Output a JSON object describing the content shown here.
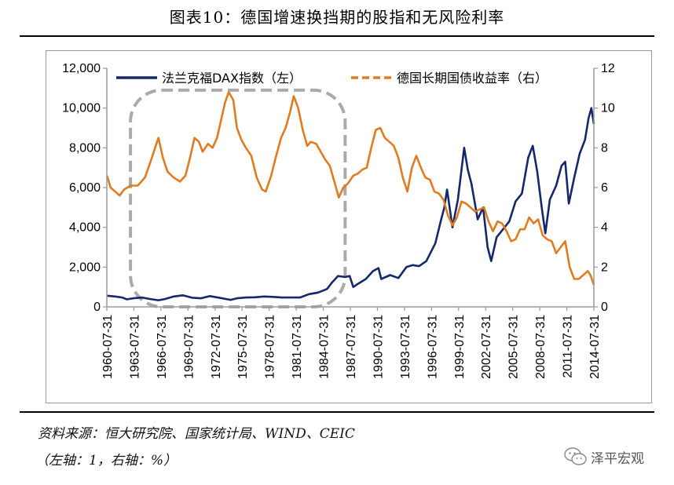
{
  "title": "图表10：德国增速换挡期的股指和无风险利率",
  "source": "资料来源：恒大研究院、国家统计局、WIND、CEIC",
  "note": "（左轴：1，右轴：%）",
  "brand": "泽平宏观",
  "brand_icon": "wechat-icon",
  "colors": {
    "dax": "#14286b",
    "bond": "#e07b22",
    "highlight": "#aaaaaa"
  },
  "chart_data": {
    "type": "line",
    "title": "图表10：德国增速换挡期的股指和无风险利率",
    "x_tick_labels": [
      "1960-07-31",
      "1963-07-31",
      "1966-07-31",
      "1969-07-31",
      "1972-07-31",
      "1975-07-31",
      "1978-07-31",
      "1981-07-31",
      "1984-07-31",
      "1987-07-31",
      "1990-07-31",
      "1993-07-31",
      "1996-07-31",
      "1999-07-31",
      "2002-07-31",
      "2005-07-31",
      "2008-07-31",
      "2011-07-31",
      "2014-07-31"
    ],
    "xlim": [
      1960.58,
      2014.58
    ],
    "left_axis": {
      "ylim": [
        0,
        12000
      ],
      "ticks": [
        "0",
        "2,000",
        "4,000",
        "6,000",
        "8,000",
        "10,000",
        "12,000"
      ]
    },
    "right_axis": {
      "ylim": [
        0,
        12
      ],
      "ticks": [
        "0",
        "2",
        "4",
        "6",
        "8",
        "10",
        "12"
      ]
    },
    "legend": [
      "法兰克福DAX指数（左）",
      "德国长期国债收益率（右）"
    ],
    "legend_position": "top",
    "highlight": {
      "shape": "rounded-rect",
      "style": "dashed",
      "x_range": [
        1963.2,
        1987.0
      ],
      "y_range_left": [
        0,
        10900
      ]
    },
    "series": [
      {
        "name": "法兰克福DAX指数（左）",
        "axis": "left",
        "style": "solid",
        "points": [
          [
            1960.6,
            560
          ],
          [
            1961.5,
            520
          ],
          [
            1962.3,
            470
          ],
          [
            1962.8,
            380
          ],
          [
            1963.5,
            430
          ],
          [
            1964.5,
            470
          ],
          [
            1965.3,
            400
          ],
          [
            1966.3,
            330
          ],
          [
            1967.0,
            390
          ],
          [
            1968.0,
            520
          ],
          [
            1969.0,
            580
          ],
          [
            1970.0,
            460
          ],
          [
            1971.0,
            430
          ],
          [
            1972.0,
            540
          ],
          [
            1973.0,
            460
          ],
          [
            1974.3,
            350
          ],
          [
            1975.0,
            430
          ],
          [
            1976.0,
            470
          ],
          [
            1977.0,
            480
          ],
          [
            1978.0,
            520
          ],
          [
            1979.0,
            500
          ],
          [
            1980.0,
            470
          ],
          [
            1981.0,
            470
          ],
          [
            1982.0,
            470
          ],
          [
            1983.0,
            640
          ],
          [
            1984.0,
            720
          ],
          [
            1985.0,
            900
          ],
          [
            1985.5,
            1200
          ],
          [
            1986.2,
            1550
          ],
          [
            1987.0,
            1500
          ],
          [
            1987.5,
            1550
          ],
          [
            1987.9,
            1000
          ],
          [
            1988.5,
            1180
          ],
          [
            1989.3,
            1400
          ],
          [
            1990.1,
            1800
          ],
          [
            1990.7,
            1950
          ],
          [
            1991.0,
            1400
          ],
          [
            1992.0,
            1600
          ],
          [
            1992.9,
            1450
          ],
          [
            1993.8,
            2000
          ],
          [
            1994.5,
            2100
          ],
          [
            1995.2,
            2050
          ],
          [
            1996.0,
            2300
          ],
          [
            1997.0,
            3200
          ],
          [
            1997.6,
            4300
          ],
          [
            1998.0,
            5000
          ],
          [
            1998.3,
            5900
          ],
          [
            1998.9,
            4000
          ],
          [
            1999.5,
            5400
          ],
          [
            2000.2,
            8000
          ],
          [
            2000.6,
            6900
          ],
          [
            2001.0,
            6200
          ],
          [
            2001.7,
            4400
          ],
          [
            2002.3,
            5000
          ],
          [
            2002.8,
            3000
          ],
          [
            2003.2,
            2300
          ],
          [
            2003.8,
            3500
          ],
          [
            2004.5,
            3900
          ],
          [
            2005.2,
            4300
          ],
          [
            2005.9,
            5300
          ],
          [
            2006.6,
            5700
          ],
          [
            2007.3,
            7500
          ],
          [
            2007.8,
            8100
          ],
          [
            2008.3,
            6800
          ],
          [
            2008.8,
            5000
          ],
          [
            2009.2,
            3700
          ],
          [
            2009.7,
            5400
          ],
          [
            2010.4,
            6100
          ],
          [
            2011.0,
            7100
          ],
          [
            2011.4,
            7300
          ],
          [
            2011.8,
            5200
          ],
          [
            2012.4,
            6500
          ],
          [
            2013.0,
            7700
          ],
          [
            2013.6,
            8400
          ],
          [
            2014.0,
            9500
          ],
          [
            2014.3,
            10000
          ],
          [
            2014.58,
            9200
          ]
        ]
      },
      {
        "name": "德国长期国债收益率（右）",
        "axis": "right",
        "style": "solid",
        "points": [
          [
            1960.6,
            6.6
          ],
          [
            1961.0,
            6.0
          ],
          [
            1961.5,
            5.8
          ],
          [
            1962.0,
            5.6
          ],
          [
            1962.5,
            5.9
          ],
          [
            1963.2,
            6.1
          ],
          [
            1964.0,
            6.1
          ],
          [
            1964.8,
            6.5
          ],
          [
            1965.5,
            7.4
          ],
          [
            1966.0,
            8.1
          ],
          [
            1966.3,
            8.5
          ],
          [
            1966.8,
            7.5
          ],
          [
            1967.3,
            6.8
          ],
          [
            1968.0,
            6.5
          ],
          [
            1968.7,
            6.3
          ],
          [
            1969.3,
            6.6
          ],
          [
            1969.8,
            7.5
          ],
          [
            1970.3,
            8.5
          ],
          [
            1970.8,
            8.3
          ],
          [
            1971.2,
            7.8
          ],
          [
            1971.8,
            8.2
          ],
          [
            1972.3,
            8.0
          ],
          [
            1972.8,
            8.5
          ],
          [
            1973.2,
            9.3
          ],
          [
            1973.7,
            10.3
          ],
          [
            1974.1,
            10.8
          ],
          [
            1974.6,
            10.4
          ],
          [
            1975.0,
            9.0
          ],
          [
            1975.5,
            8.4
          ],
          [
            1976.0,
            8.0
          ],
          [
            1976.6,
            7.6
          ],
          [
            1977.2,
            6.5
          ],
          [
            1977.8,
            5.9
          ],
          [
            1978.2,
            5.8
          ],
          [
            1978.8,
            6.6
          ],
          [
            1979.3,
            7.5
          ],
          [
            1979.9,
            8.5
          ],
          [
            1980.4,
            9.0
          ],
          [
            1980.9,
            9.8
          ],
          [
            1981.3,
            10.6
          ],
          [
            1981.8,
            10.0
          ],
          [
            1982.3,
            8.9
          ],
          [
            1982.8,
            8.1
          ],
          [
            1983.2,
            8.3
          ],
          [
            1983.8,
            8.2
          ],
          [
            1984.3,
            7.8
          ],
          [
            1984.8,
            7.4
          ],
          [
            1985.3,
            7.1
          ],
          [
            1985.8,
            6.3
          ],
          [
            1986.3,
            5.5
          ],
          [
            1986.8,
            6.0
          ],
          [
            1987.3,
            6.2
          ],
          [
            1987.9,
            6.6
          ],
          [
            1988.4,
            6.7
          ],
          [
            1988.9,
            6.9
          ],
          [
            1989.4,
            7.0
          ],
          [
            1989.9,
            8.0
          ],
          [
            1990.4,
            8.9
          ],
          [
            1990.9,
            9.0
          ],
          [
            1991.4,
            8.5
          ],
          [
            1991.9,
            8.3
          ],
          [
            1992.4,
            8.1
          ],
          [
            1992.9,
            7.5
          ],
          [
            1993.4,
            6.5
          ],
          [
            1993.9,
            5.8
          ],
          [
            1994.4,
            7.0
          ],
          [
            1994.9,
            7.6
          ],
          [
            1995.4,
            7.0
          ],
          [
            1995.9,
            6.5
          ],
          [
            1996.4,
            6.4
          ],
          [
            1996.9,
            5.8
          ],
          [
            1997.4,
            5.7
          ],
          [
            1997.9,
            5.4
          ],
          [
            1998.4,
            4.6
          ],
          [
            1998.9,
            4.1
          ],
          [
            1999.4,
            4.5
          ],
          [
            1999.9,
            5.3
          ],
          [
            2000.4,
            5.2
          ],
          [
            2000.9,
            5.0
          ],
          [
            2001.4,
            4.8
          ],
          [
            2001.9,
            4.9
          ],
          [
            2002.4,
            5.0
          ],
          [
            2002.9,
            4.3
          ],
          [
            2003.4,
            3.8
          ],
          [
            2003.9,
            4.3
          ],
          [
            2004.4,
            4.2
          ],
          [
            2004.9,
            3.8
          ],
          [
            2005.4,
            3.3
          ],
          [
            2005.9,
            3.4
          ],
          [
            2006.4,
            3.9
          ],
          [
            2006.9,
            3.9
          ],
          [
            2007.4,
            4.5
          ],
          [
            2007.9,
            4.2
          ],
          [
            2008.4,
            4.4
          ],
          [
            2008.9,
            3.6
          ],
          [
            2009.4,
            3.4
          ],
          [
            2009.9,
            3.3
          ],
          [
            2010.4,
            2.7
          ],
          [
            2010.9,
            3.0
          ],
          [
            2011.4,
            3.3
          ],
          [
            2011.9,
            2.0
          ],
          [
            2012.4,
            1.4
          ],
          [
            2012.9,
            1.4
          ],
          [
            2013.4,
            1.6
          ],
          [
            2013.9,
            1.8
          ],
          [
            2014.2,
            1.6
          ],
          [
            2014.58,
            1.1
          ]
        ]
      }
    ]
  }
}
